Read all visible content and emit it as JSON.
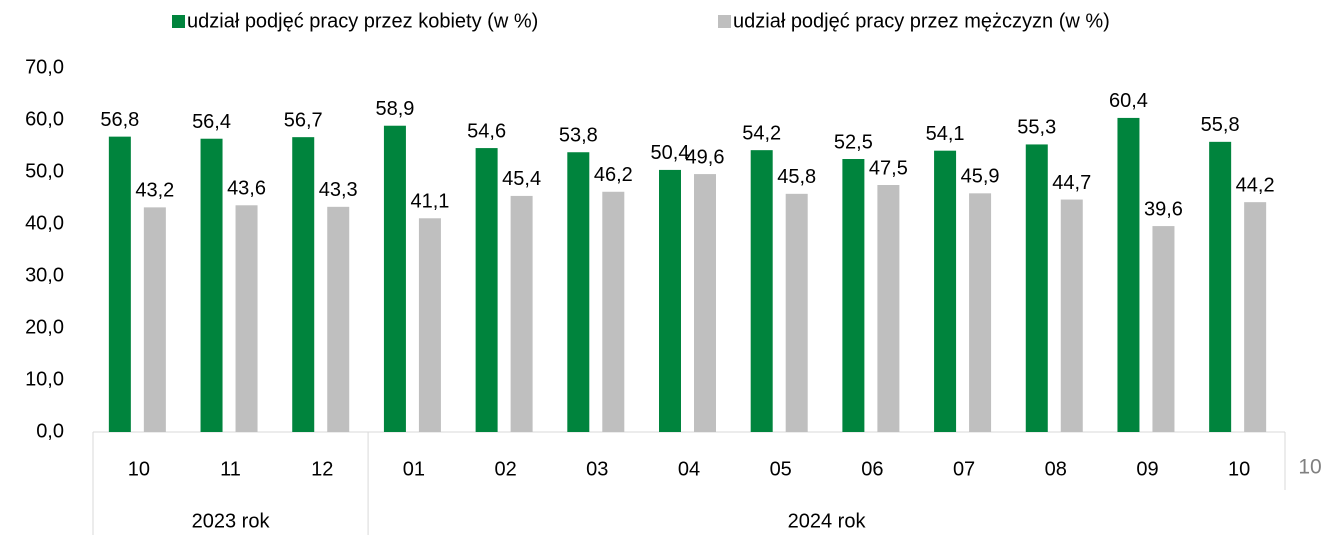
{
  "chart_data": {
    "type": "bar",
    "categories": [
      "10",
      "11",
      "12",
      "01",
      "02",
      "03",
      "04",
      "05",
      "06",
      "07",
      "08",
      "09",
      "10"
    ],
    "groups": [
      {
        "label": "2023 rok",
        "size": 3
      },
      {
        "label": "2024 rok",
        "size": 10
      }
    ],
    "series": [
      {
        "name": "udział podjęć pracy przez kobiety (w %)",
        "color": "#00843d",
        "values": [
          56.8,
          56.4,
          56.7,
          58.9,
          54.6,
          53.8,
          50.4,
          54.2,
          52.5,
          54.1,
          55.3,
          60.4,
          55.8
        ],
        "value_labels": [
          "56,8",
          "56,4",
          "56,7",
          "58,9",
          "54,6",
          "53,8",
          "50,4",
          "54,2",
          "52,5",
          "54,1",
          "55,3",
          "60,4",
          "55,8"
        ]
      },
      {
        "name": "udział podjęć pracy przez mężczyzn (w %)",
        "color": "#bfbfbf",
        "values": [
          43.2,
          43.6,
          43.3,
          41.1,
          45.4,
          46.2,
          49.6,
          45.8,
          47.5,
          45.9,
          44.7,
          39.6,
          44.2
        ],
        "value_labels": [
          "43,2",
          "43,6",
          "43,3",
          "41,1",
          "45,4",
          "46,2",
          "49,6",
          "45,8",
          "47,5",
          "45,9",
          "44,7",
          "39,6",
          "44,2"
        ]
      }
    ],
    "ylim": [
      0,
      70
    ],
    "yticks": [
      {
        "value": 0,
        "label": "0,0"
      },
      {
        "value": 10,
        "label": "10,0"
      },
      {
        "value": 20,
        "label": "20,0"
      },
      {
        "value": 30,
        "label": "30,0"
      },
      {
        "value": 40,
        "label": "40,0"
      },
      {
        "value": 50,
        "label": "50,0"
      },
      {
        "value": 60,
        "label": "60,0"
      },
      {
        "value": 70,
        "label": "70,0"
      }
    ],
    "grid": false,
    "legend": "top"
  },
  "page_number": "10"
}
